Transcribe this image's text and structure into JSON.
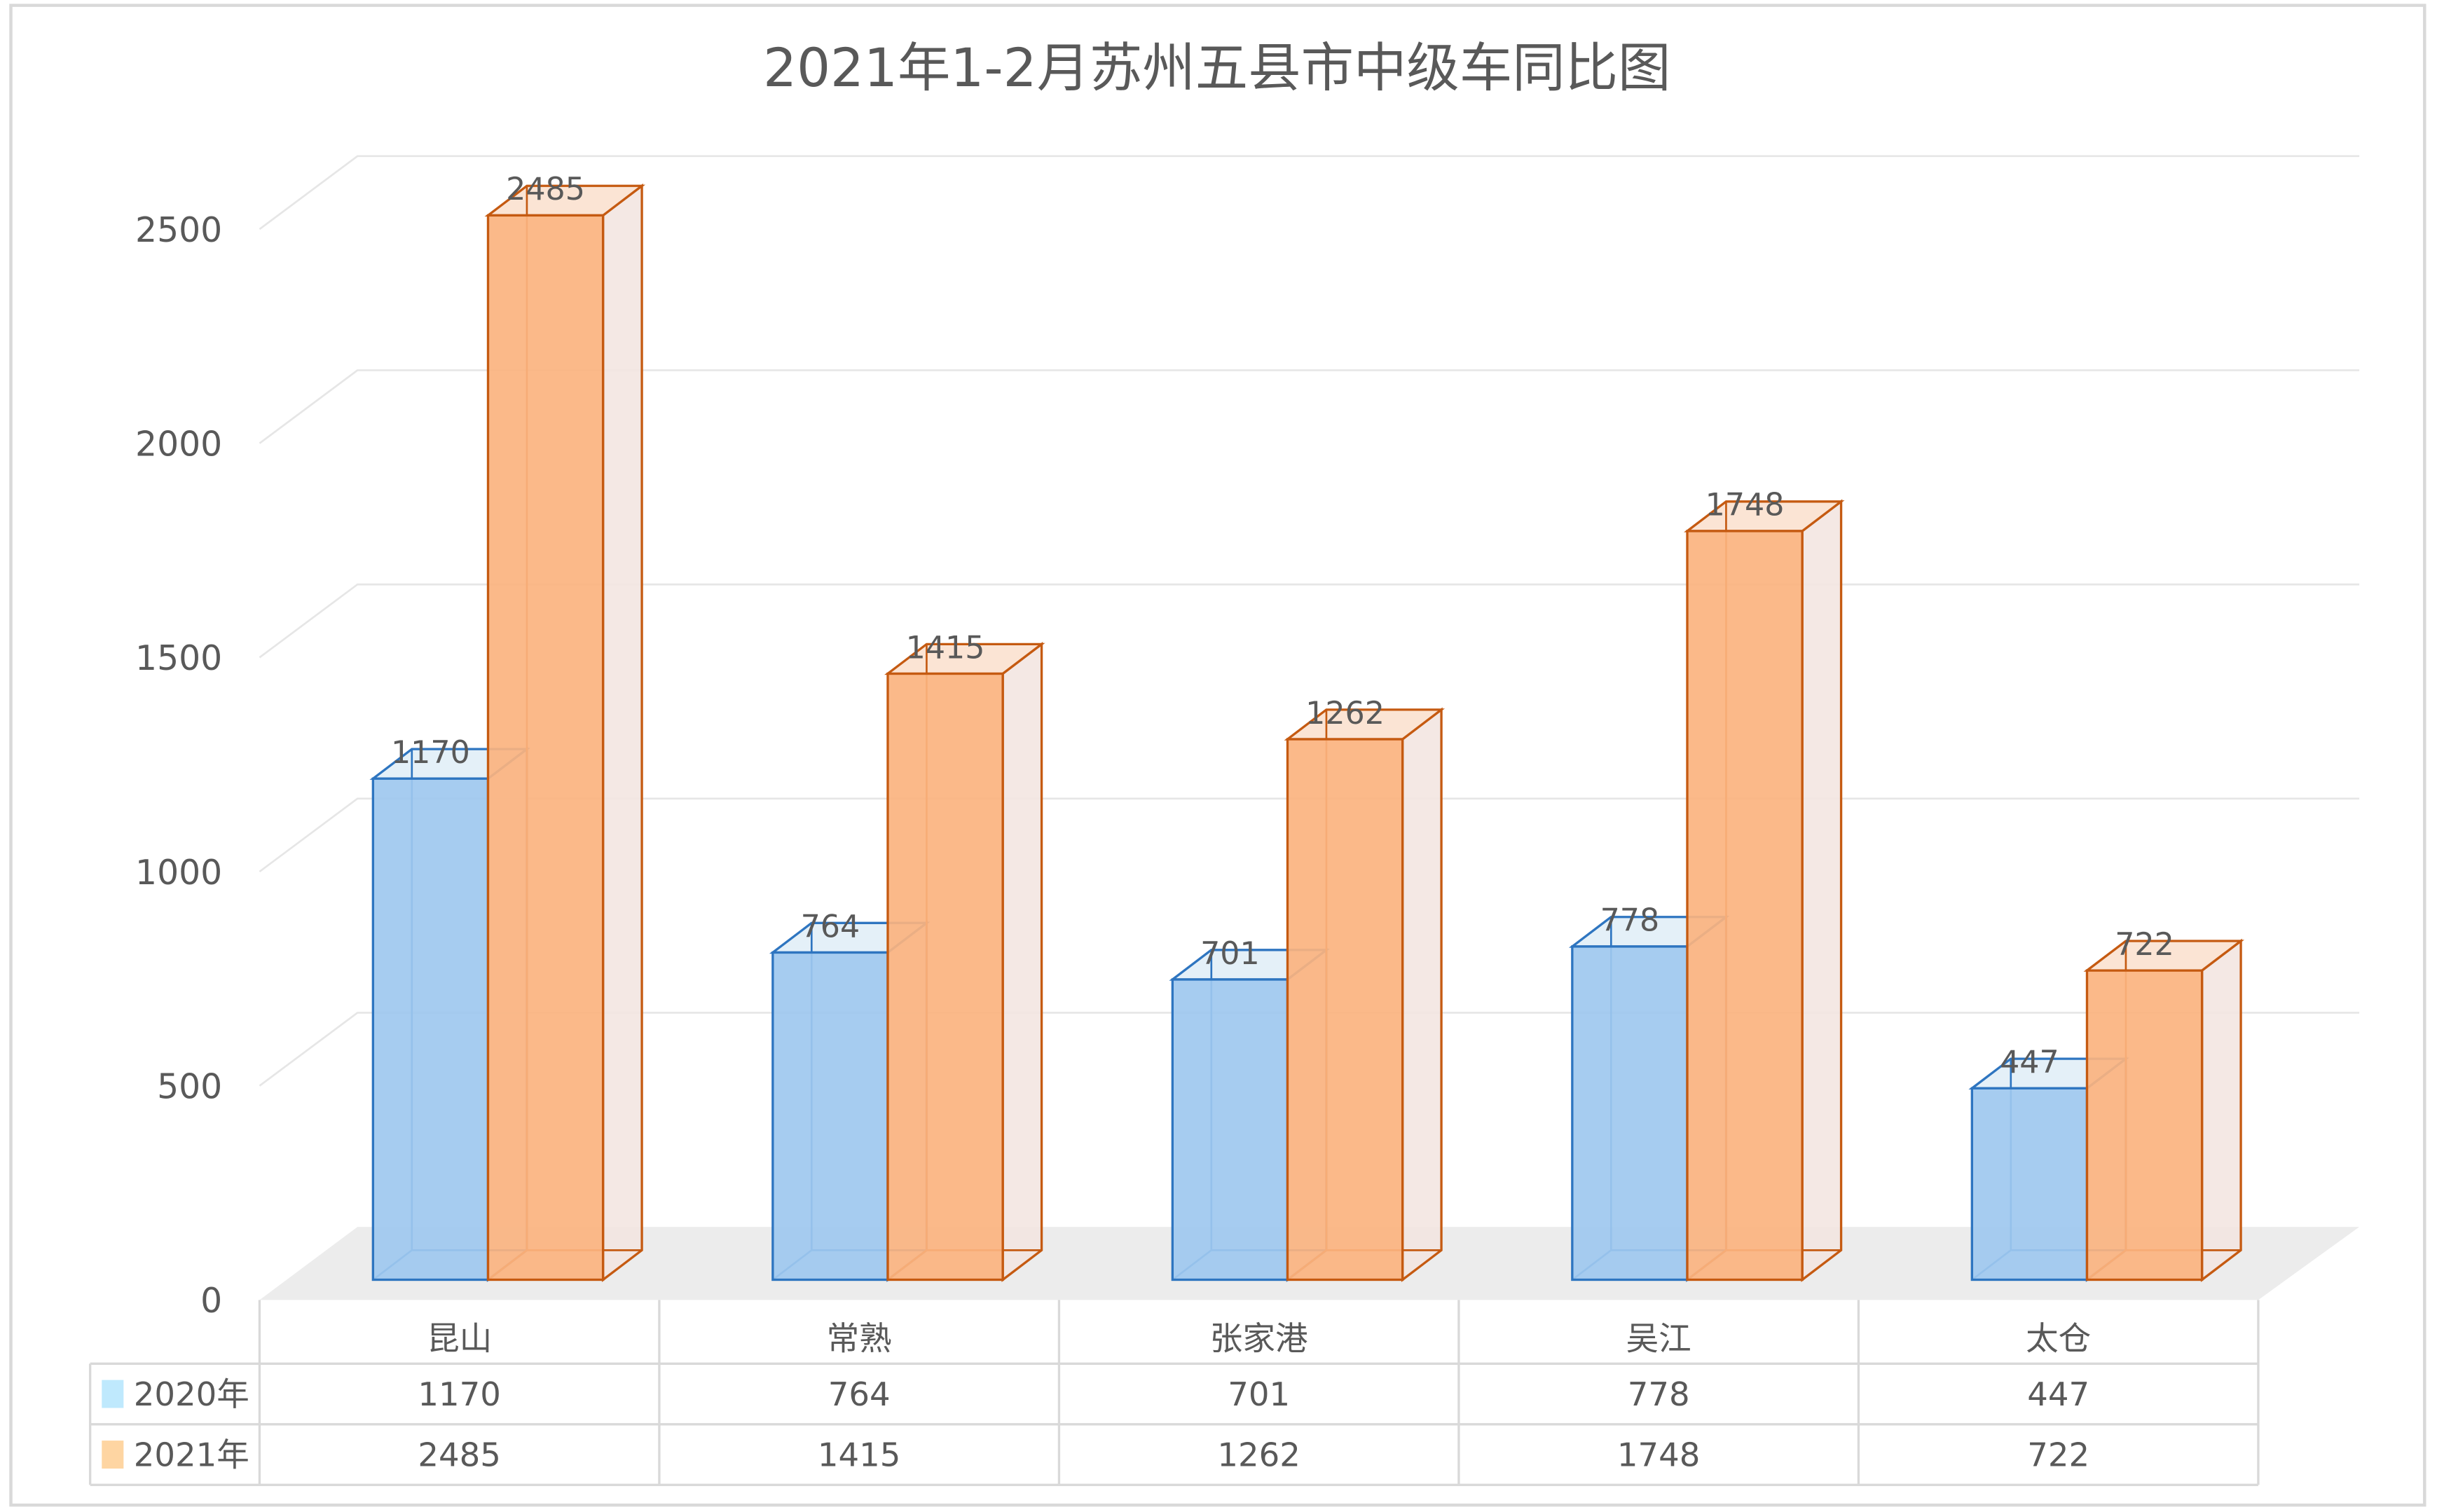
{
  "chart_data": {
    "type": "bar",
    "title": "2021年1-2月苏州五县市中级车同比图",
    "categories": [
      "昆山",
      "常熟",
      "张家港",
      "吴江",
      "太仓"
    ],
    "series": [
      {
        "name": "2020年",
        "values": [
          1170,
          764,
          701,
          778,
          447
        ],
        "color": "#9ec8ef",
        "edge": "#2e75c0",
        "legend_color": "#bfe9fd"
      },
      {
        "name": "2021年",
        "values": [
          2485,
          1415,
          1262,
          1748,
          722
        ],
        "color": "#fbb37f",
        "edge": "#c55a11",
        "legend_color": "#fed5a2"
      }
    ],
    "ylim": [
      0,
      2500
    ],
    "yticks": [
      "0",
      "500",
      "1000",
      "1500",
      "2000",
      "2500"
    ],
    "ytick_values": [
      0,
      500,
      1000,
      1500,
      2000,
      2500
    ],
    "grid": true,
    "legend": "data-table-bottom",
    "style": "3d-clustered-column"
  }
}
